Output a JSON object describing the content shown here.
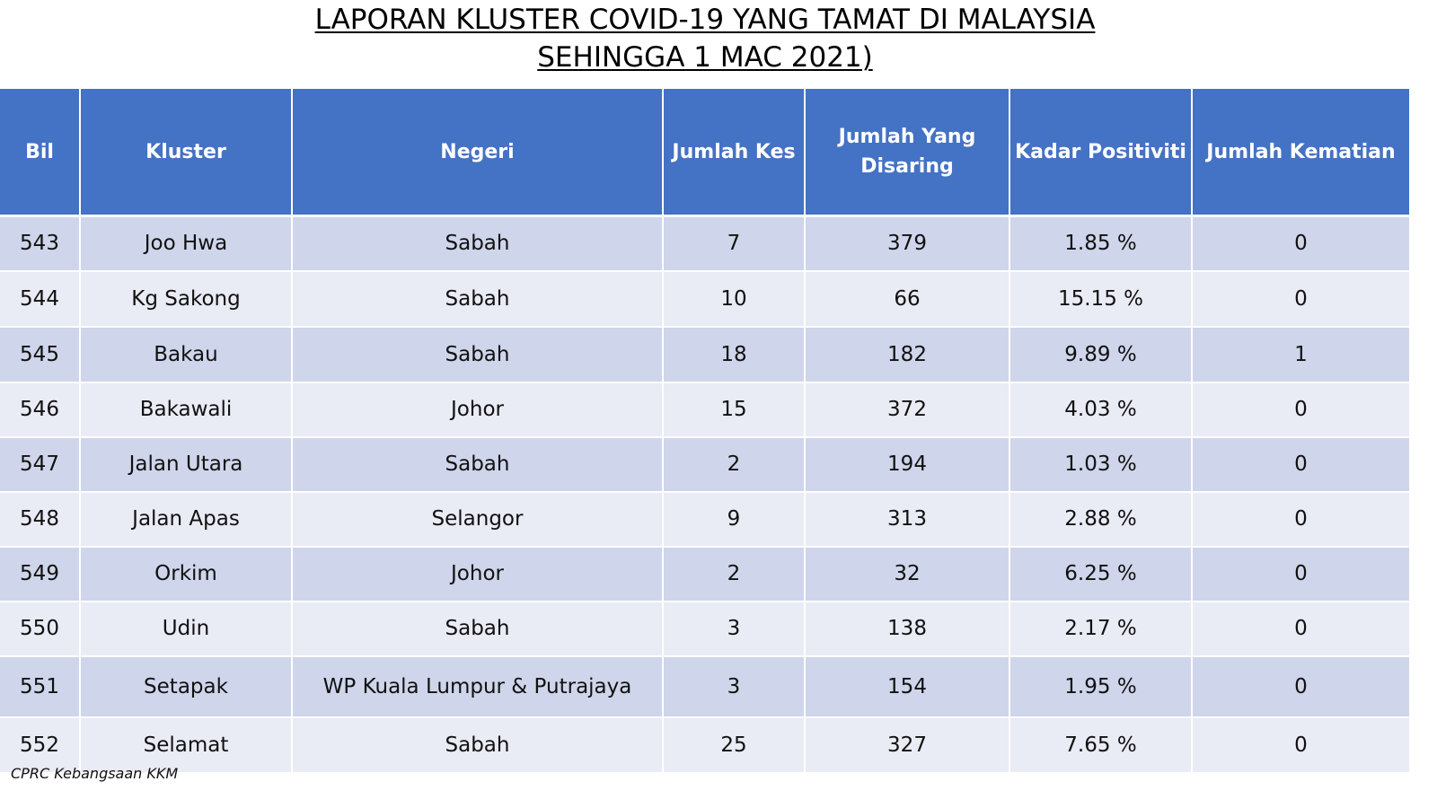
{
  "title": {
    "line1": "LAPORAN KLUSTER COVID-19 YANG TAMAT DI MALAYSIA",
    "line2": "SEHINGGA 1 MAC 2021)"
  },
  "table": {
    "headers": {
      "bil": "Bil",
      "kluster": "Kluster",
      "negeri": "Negeri",
      "jumlah_kes": "Jumlah Kes",
      "jumlah_disaring": "Jumlah Yang Disaring",
      "kadar_positiviti": "Kadar Positiviti",
      "jumlah_kematian": "Jumlah Kematian"
    },
    "rows": [
      {
        "bil": "543",
        "kluster": "Joo Hwa",
        "negeri": "Sabah",
        "kes": "7",
        "disaring": "379",
        "kadar": "1.85 %",
        "kematian": "0"
      },
      {
        "bil": "544",
        "kluster": "Kg Sakong",
        "negeri": "Sabah",
        "kes": "10",
        "disaring": "66",
        "kadar": "15.15 %",
        "kematian": "0"
      },
      {
        "bil": "545",
        "kluster": "Bakau",
        "negeri": "Sabah",
        "kes": "18",
        "disaring": "182",
        "kadar": "9.89 %",
        "kematian": "1"
      },
      {
        "bil": "546",
        "kluster": "Bakawali",
        "negeri": "Johor",
        "kes": "15",
        "disaring": "372",
        "kadar": "4.03 %",
        "kematian": "0"
      },
      {
        "bil": "547",
        "kluster": "Jalan Utara",
        "negeri": "Sabah",
        "kes": "2",
        "disaring": "194",
        "kadar": "1.03 %",
        "kematian": "0"
      },
      {
        "bil": "548",
        "kluster": "Jalan Apas",
        "negeri": "Selangor",
        "kes": "9",
        "disaring": "313",
        "kadar": "2.88 %",
        "kematian": "0"
      },
      {
        "bil": "549",
        "kluster": "Orkim",
        "negeri": "Johor",
        "kes": "2",
        "disaring": "32",
        "kadar": "6.25 %",
        "kematian": "0"
      },
      {
        "bil": "550",
        "kluster": "Udin",
        "negeri": "Sabah",
        "kes": "3",
        "disaring": "138",
        "kadar": "2.17 %",
        "kematian": "0"
      },
      {
        "bil": "551",
        "kluster": "Setapak",
        "negeri": "WP Kuala Lumpur & Putrajaya",
        "kes": "3",
        "disaring": "154",
        "kadar": "1.95 %",
        "kematian": "0"
      },
      {
        "bil": "552",
        "kluster": "Selamat",
        "negeri": "Sabah",
        "kes": "25",
        "disaring": "327",
        "kadar": "7.65 %",
        "kematian": "0"
      }
    ]
  },
  "source": "CPRC Kebangsaan KKM",
  "colors": {
    "header_bg": "#4472c4",
    "row_odd_bg": "#cfd5ea",
    "row_even_bg": "#e9ebf5"
  }
}
